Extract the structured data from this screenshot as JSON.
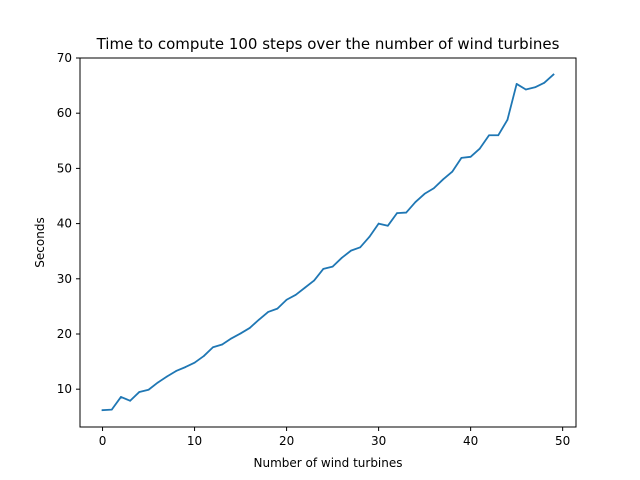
{
  "chart_data": {
    "type": "line",
    "title": "Time to compute 100 steps over the number of wind turbines",
    "xlabel": "Number of wind turbines",
    "ylabel": "Seconds",
    "xlim": [
      -2.45,
      51.45
    ],
    "ylim": [
      3.15,
      70.0
    ],
    "xticks": [
      0,
      10,
      20,
      30,
      40,
      50
    ],
    "yticks": [
      10,
      20,
      30,
      40,
      50,
      60,
      70
    ],
    "grid": false,
    "series": [
      {
        "color": "#1f77b4",
        "x": [
          0,
          1,
          2,
          3,
          4,
          5,
          6,
          7,
          8,
          9,
          10,
          11,
          12,
          13,
          14,
          15,
          16,
          17,
          18,
          19,
          20,
          21,
          22,
          23,
          24,
          25,
          26,
          27,
          28,
          29,
          30,
          31,
          32,
          33,
          34,
          35,
          36,
          37,
          38,
          39,
          40,
          41,
          42,
          43,
          44,
          45,
          46,
          47,
          48,
          49
        ],
        "values": [
          6.2,
          6.3,
          8.6,
          7.9,
          9.5,
          9.9,
          11.2,
          12.3,
          13.3,
          14.0,
          14.8,
          16.0,
          17.6,
          18.1,
          19.2,
          20.1,
          21.1,
          22.6,
          24.0,
          24.6,
          26.2,
          27.1,
          28.4,
          29.7,
          31.8,
          32.2,
          33.8,
          35.1,
          35.7,
          37.6,
          40.0,
          39.6,
          41.9,
          42.0,
          43.9,
          45.4,
          46.4,
          48.0,
          49.4,
          51.9,
          52.1,
          53.6,
          56.0,
          56.0,
          58.8,
          65.3,
          64.3,
          64.7,
          65.5,
          67.0
        ]
      }
    ]
  }
}
